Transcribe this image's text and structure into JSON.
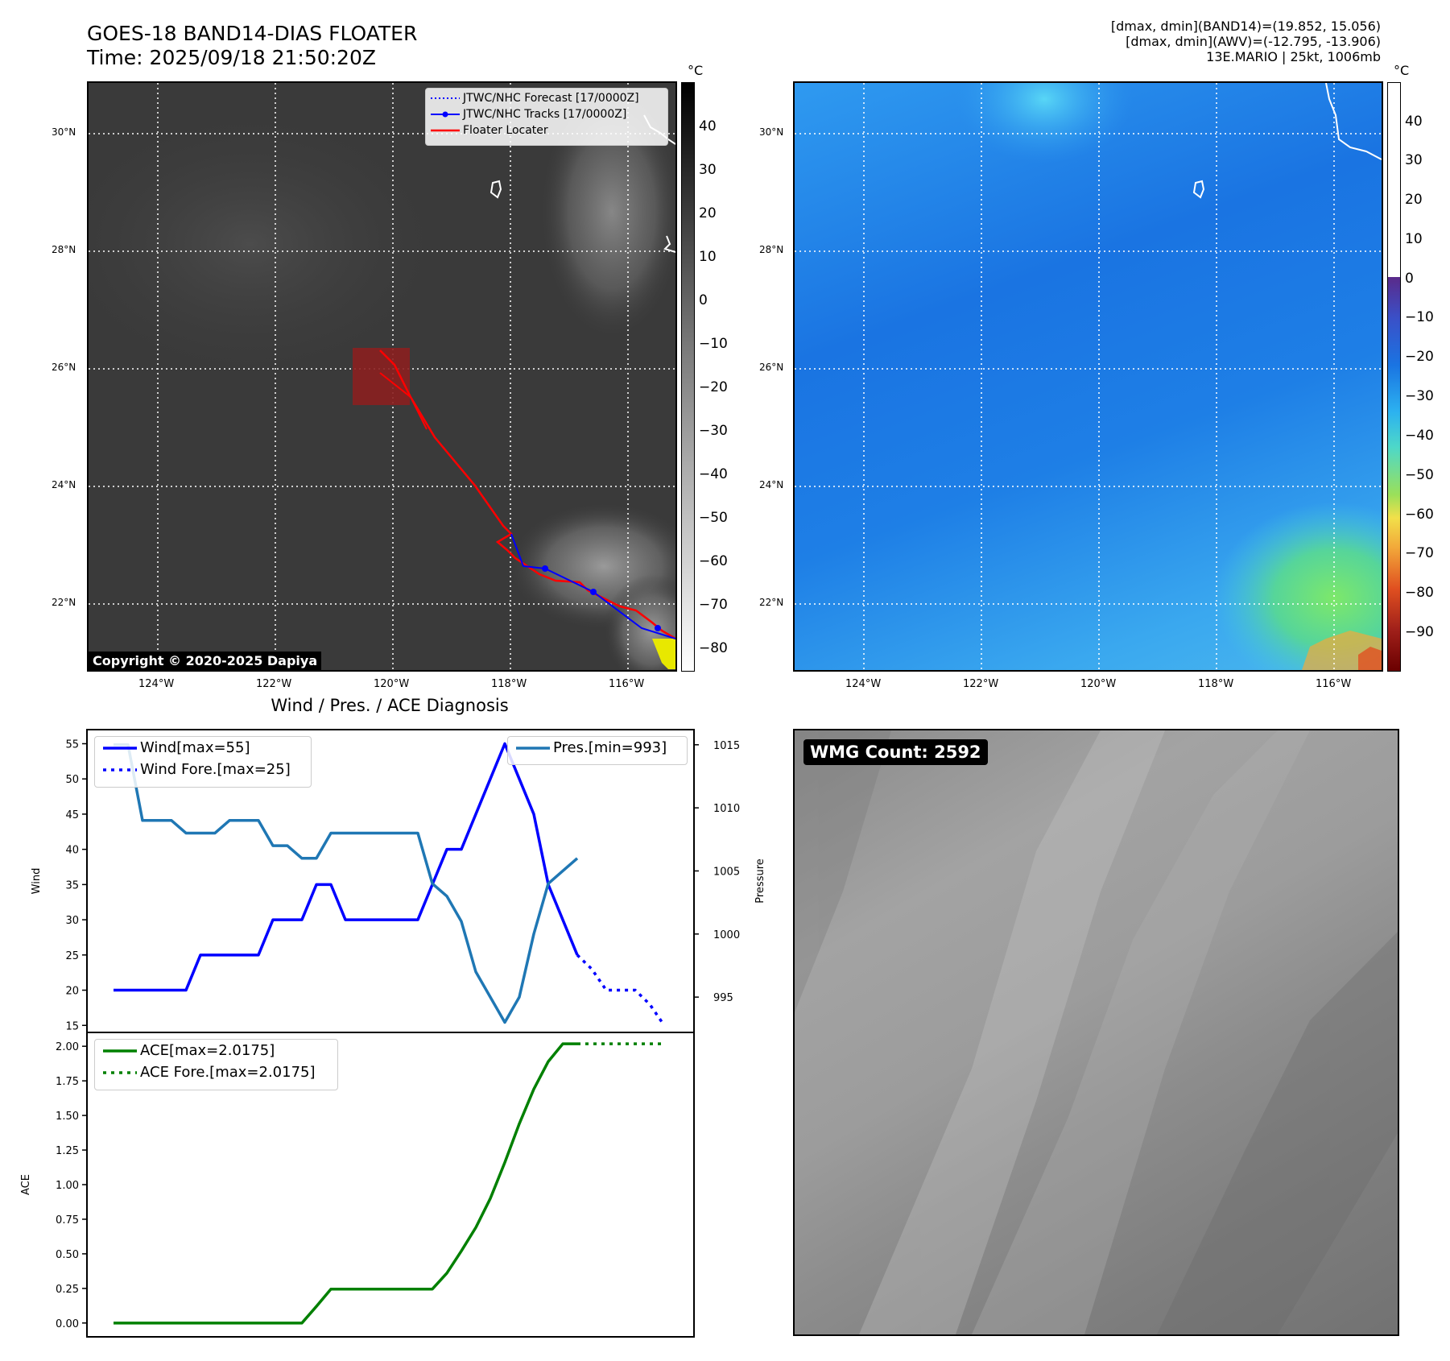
{
  "header": {
    "title_line1": "GOES-18 BAND14-DIAS FLOATER",
    "title_line2": "Time: 2025/09/18 21:50:20Z",
    "info_line1": "[dmax, dmin](BAND14)=(19.852, 15.056)",
    "info_line2": "[dmax, dmin](AWV)=(-12.795, -13.906)",
    "info_line3": "13E.MARIO | 25kt, 1006mb"
  },
  "maps": {
    "lon_labels": [
      "124°W",
      "122°W",
      "120°W",
      "118°W",
      "116°W"
    ],
    "lat_labels": [
      "30°N",
      "28°N",
      "26°N",
      "24°N",
      "22°N"
    ],
    "copyright": "Copyright © 2020-2025 Dapiya",
    "unit": "°C",
    "legend": [
      {
        "label": "JTWC/NHC Forecast [17/0000Z]",
        "style": "dotted",
        "color": "#0000ff"
      },
      {
        "label": "JTWC/NHC Tracks [17/0000Z]",
        "style": "solid-marker",
        "color": "#0000ff"
      },
      {
        "label": "Floater Locater",
        "style": "solid",
        "color": "#ff0000"
      }
    ],
    "colorbar_left_ticks": [
      "40",
      "30",
      "20",
      "10",
      "0",
      "−10",
      "−20",
      "−30",
      "−40",
      "−50",
      "−60",
      "−70",
      "−80"
    ],
    "colorbar_right_ticks": [
      "40",
      "30",
      "20",
      "10",
      "0",
      "−10",
      "−20",
      "−30",
      "−40",
      "−50",
      "−60",
      "−70",
      "−80",
      "−90"
    ]
  },
  "wmg": {
    "label": "WMG Count: 2592"
  },
  "colors": {
    "wind": "#0000ff",
    "pressure": "#1f77b4",
    "ace": "#008000",
    "track": "#ff0000",
    "ir_background": "#3a3a3a",
    "awv_background": "#1f7fe6"
  },
  "chart_data": [
    {
      "type": "line",
      "title": "Wind / Pres. / ACE Diagnosis",
      "ylabel": "Wind",
      "ylabel_right": "Pressure",
      "ylim": [
        14,
        57
      ],
      "ylim_right": [
        992.2,
        1016.2
      ],
      "yticks": [
        15,
        20,
        25,
        30,
        35,
        40,
        45,
        50,
        55
      ],
      "yticks_right": [
        995,
        1000,
        1005,
        1010,
        1015
      ],
      "legend_left": "upper-left",
      "legend_right": "upper-right",
      "series": [
        {
          "name": "Wind[max=55]",
          "axis": "left",
          "style": "solid",
          "x": [
            0,
            1,
            2,
            3,
            4,
            5,
            6,
            7,
            8,
            9,
            10,
            11,
            12,
            13,
            14,
            15,
            16,
            17,
            18,
            19,
            20,
            21,
            22,
            23,
            24,
            25,
            26,
            27,
            28,
            29,
            30,
            31,
            32,
            33
          ],
          "values": [
            20,
            20,
            20,
            20,
            20,
            20,
            25,
            25,
            25,
            25,
            25,
            30,
            30,
            30,
            35,
            35,
            30,
            30,
            30,
            30,
            30,
            30,
            35,
            40,
            40,
            45,
            50,
            55,
            50,
            45,
            35,
            30,
            25,
            null
          ]
        },
        {
          "name": "Wind Fore.[max=25]",
          "axis": "left",
          "style": "dotted",
          "x": [
            32,
            33,
            34,
            35,
            36,
            37,
            38
          ],
          "values": [
            25,
            23,
            20,
            20,
            20,
            18,
            15
          ]
        },
        {
          "name": "Pres.[min=993]",
          "axis": "right",
          "style": "solid",
          "x": [
            0,
            1,
            2,
            3,
            4,
            5,
            6,
            7,
            8,
            9,
            10,
            11,
            12,
            13,
            14,
            15,
            16,
            17,
            18,
            19,
            20,
            21,
            22,
            23,
            24,
            25,
            26,
            27,
            28,
            29,
            30,
            31,
            32
          ],
          "values": [
            1015,
            1015,
            1009,
            1009,
            1009,
            1008,
            1008,
            1008,
            1009,
            1009,
            1009,
            1007,
            1007,
            1006,
            1006,
            1008,
            1008,
            1008,
            1008,
            1008,
            1008,
            1008,
            1004,
            1003,
            1001,
            997,
            995,
            993,
            995,
            1000,
            1004,
            1005,
            1006
          ]
        }
      ]
    },
    {
      "type": "line",
      "ylabel": "ACE",
      "ylim": [
        -0.1,
        2.1
      ],
      "yticks": [
        0.0,
        0.25,
        0.5,
        0.75,
        1.0,
        1.25,
        1.5,
        1.75,
        2.0
      ],
      "legend": "upper-left",
      "series": [
        {
          "name": "ACE[max=2.0175]",
          "style": "solid",
          "x": [
            0,
            1,
            2,
            3,
            4,
            5,
            6,
            7,
            8,
            9,
            10,
            11,
            12,
            13,
            14,
            15,
            16,
            17,
            18,
            19,
            20,
            21,
            22,
            23,
            24,
            25,
            26,
            27,
            28,
            29,
            30,
            31,
            32
          ],
          "values": [
            0,
            0,
            0,
            0,
            0,
            0,
            0,
            0,
            0,
            0,
            0,
            0,
            0,
            0,
            0.12,
            0.245,
            0.245,
            0.245,
            0.245,
            0.245,
            0.245,
            0.245,
            0.245,
            0.36,
            0.52,
            0.69,
            0.9,
            1.16,
            1.44,
            1.69,
            1.89,
            2.0175,
            2.0175
          ]
        },
        {
          "name": "ACE Fore.[max=2.0175]",
          "style": "dotted",
          "x": [
            32,
            33,
            34,
            35,
            36,
            37,
            38
          ],
          "values": [
            2.0175,
            2.0175,
            2.0175,
            2.0175,
            2.0175,
            2.0175,
            2.0175
          ]
        }
      ]
    }
  ]
}
